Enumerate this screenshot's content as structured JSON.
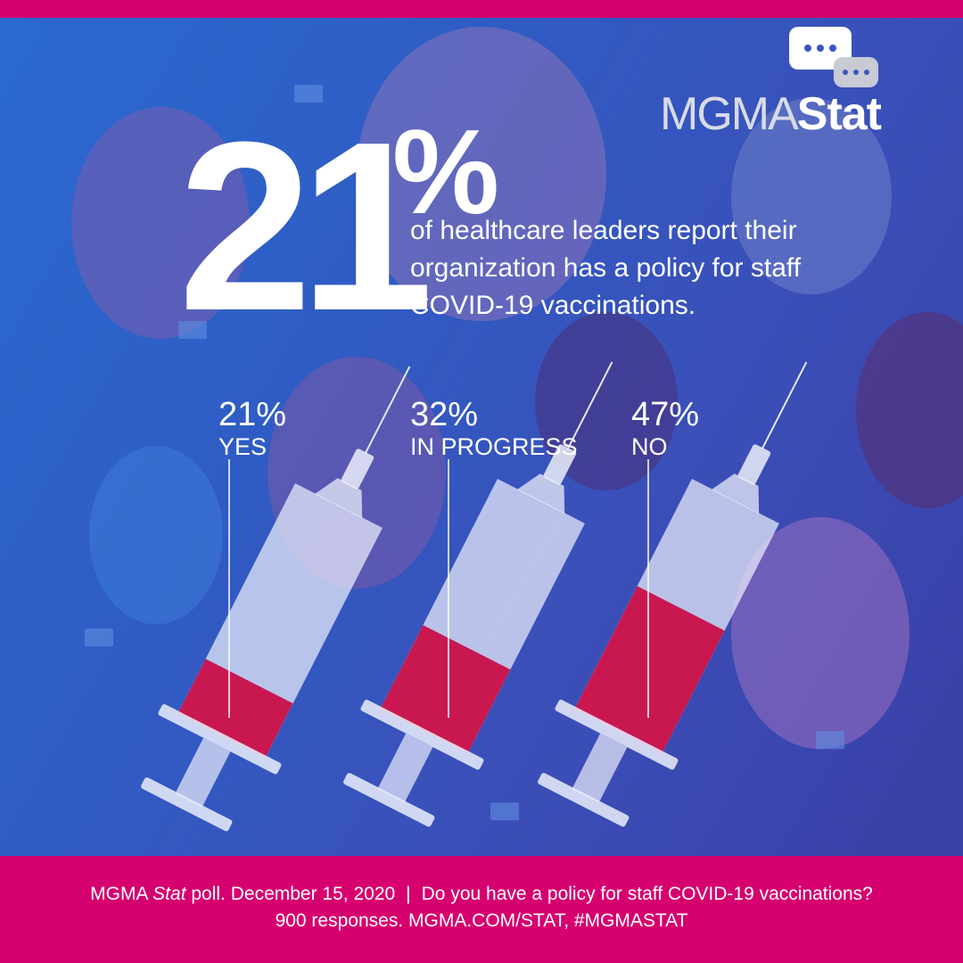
{
  "logo": {
    "text_light": "MGMA",
    "text_bold": "Stat"
  },
  "headline": {
    "number": "21",
    "percent_sign": "%",
    "subtitle_lines": [
      "of healthcare leaders report their",
      "organization has a policy for staff",
      "COVID-19 vaccinations."
    ]
  },
  "colors": {
    "brand_pink": "#d6006e",
    "fill_red": "#c8184f",
    "background_blue": "#2f5cc4"
  },
  "chart_data": {
    "type": "bar",
    "style": "syringe fill levels",
    "categories": [
      "YES",
      "IN PROGRESS",
      "NO"
    ],
    "values": [
      21,
      32,
      47
    ],
    "value_labels": [
      "21%",
      "32%",
      "47%"
    ],
    "unit": "%"
  },
  "footer": {
    "line1_prefix": "MGMA ",
    "line1_italic": "Stat",
    "line1_rest": " poll. December 15, 2020",
    "separator": "|",
    "question": "Do you have a policy for staff COVID-19 vaccinations?",
    "line2": "900 responses. MGMA.COM/STAT, #MGMASTAT"
  }
}
